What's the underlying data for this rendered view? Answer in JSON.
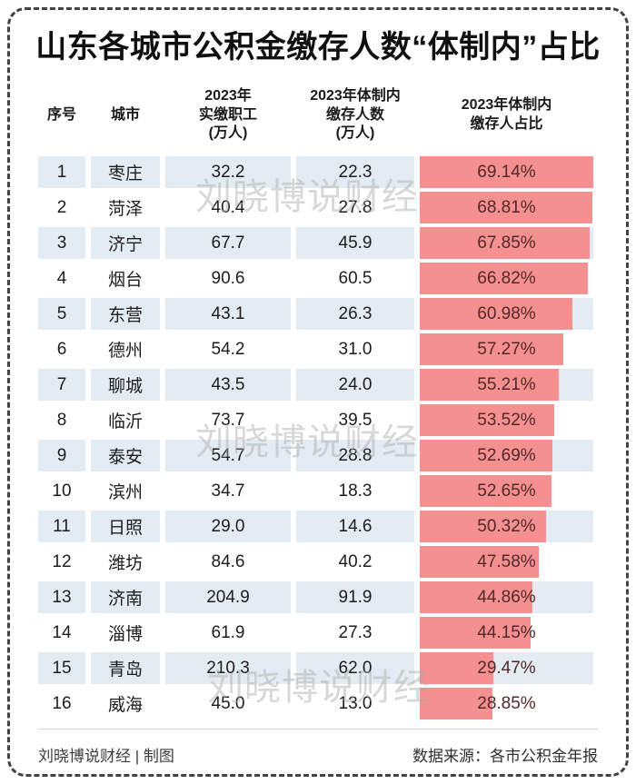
{
  "title": "山东各城市公积金缴存人数“体制内”占比",
  "watermark_text": "刘晓博说财经",
  "colors": {
    "bar": "#f49090",
    "row_band": "#e4ecf3",
    "percent_text": "#532828"
  },
  "table": {
    "headers": [
      "序号",
      "城市",
      "2023年\n实缴职工\n(万人)",
      "2023年体制内\n缴存人数\n(万人)",
      "2023年体制内\n缴存人占比"
    ],
    "bar_scale_max_percent": 69.14,
    "rows": [
      {
        "rank": "1",
        "city": "枣庄",
        "employees": "32.2",
        "institutional": "22.3",
        "percent": "69.14%",
        "percent_value": 69.14
      },
      {
        "rank": "2",
        "city": "菏泽",
        "employees": "40.4",
        "institutional": "27.8",
        "percent": "68.81%",
        "percent_value": 68.81
      },
      {
        "rank": "3",
        "city": "济宁",
        "employees": "67.7",
        "institutional": "45.9",
        "percent": "67.85%",
        "percent_value": 67.85
      },
      {
        "rank": "4",
        "city": "烟台",
        "employees": "90.6",
        "institutional": "60.5",
        "percent": "66.82%",
        "percent_value": 66.82
      },
      {
        "rank": "5",
        "city": "东营",
        "employees": "43.1",
        "institutional": "26.3",
        "percent": "60.98%",
        "percent_value": 60.98
      },
      {
        "rank": "6",
        "city": "德州",
        "employees": "54.2",
        "institutional": "31.0",
        "percent": "57.27%",
        "percent_value": 57.27
      },
      {
        "rank": "7",
        "city": "聊城",
        "employees": "43.5",
        "institutional": "24.0",
        "percent": "55.21%",
        "percent_value": 55.21
      },
      {
        "rank": "8",
        "city": "临沂",
        "employees": "73.7",
        "institutional": "39.5",
        "percent": "53.52%",
        "percent_value": 53.52
      },
      {
        "rank": "9",
        "city": "泰安",
        "employees": "54.7",
        "institutional": "28.8",
        "percent": "52.69%",
        "percent_value": 52.69
      },
      {
        "rank": "10",
        "city": "滨州",
        "employees": "34.7",
        "institutional": "18.3",
        "percent": "52.65%",
        "percent_value": 52.65
      },
      {
        "rank": "11",
        "city": "日照",
        "employees": "29.0",
        "institutional": "14.6",
        "percent": "50.32%",
        "percent_value": 50.32
      },
      {
        "rank": "12",
        "city": "潍坊",
        "employees": "84.6",
        "institutional": "40.2",
        "percent": "47.58%",
        "percent_value": 47.58
      },
      {
        "rank": "13",
        "city": "济南",
        "employees": "204.9",
        "institutional": "91.9",
        "percent": "44.86%",
        "percent_value": 44.86
      },
      {
        "rank": "14",
        "city": "淄博",
        "employees": "61.9",
        "institutional": "27.3",
        "percent": "44.15%",
        "percent_value": 44.15
      },
      {
        "rank": "15",
        "city": "青岛",
        "employees": "210.3",
        "institutional": "62.0",
        "percent": "29.47%",
        "percent_value": 29.47
      },
      {
        "rank": "16",
        "city": "威海",
        "employees": "45.0",
        "institutional": "13.0",
        "percent": "28.85%",
        "percent_value": 28.85
      }
    ]
  },
  "footer": {
    "left": "刘晓博说财经 | 制图",
    "right": "数据来源：各市公积金年报"
  },
  "chart_data": {
    "type": "table",
    "title": "山东各城市公积金缴存人数“体制内”占比",
    "columns": [
      "序号",
      "城市",
      "2023年实缴职工(万人)",
      "2023年体制内缴存人数(万人)",
      "2023年体制内缴存人占比"
    ],
    "rows": [
      [
        1,
        "枣庄",
        32.2,
        22.3,
        69.14
      ],
      [
        2,
        "菏泽",
        40.4,
        27.8,
        68.81
      ],
      [
        3,
        "济宁",
        67.7,
        45.9,
        67.85
      ],
      [
        4,
        "烟台",
        90.6,
        60.5,
        66.82
      ],
      [
        5,
        "东营",
        43.1,
        26.3,
        60.98
      ],
      [
        6,
        "德州",
        54.2,
        31.0,
        57.27
      ],
      [
        7,
        "聊城",
        43.5,
        24.0,
        55.21
      ],
      [
        8,
        "临沂",
        73.7,
        39.5,
        53.52
      ],
      [
        9,
        "泰安",
        54.7,
        28.8,
        52.69
      ],
      [
        10,
        "滨州",
        34.7,
        18.3,
        52.65
      ],
      [
        11,
        "日照",
        29.0,
        14.6,
        50.32
      ],
      [
        12,
        "潍坊",
        84.6,
        40.2,
        47.58
      ],
      [
        13,
        "济南",
        204.9,
        91.9,
        44.86
      ],
      [
        14,
        "淄博",
        61.9,
        27.3,
        44.15
      ],
      [
        15,
        "青岛",
        210.3,
        62.0,
        29.47
      ],
      [
        16,
        "威海",
        45.0,
        13.0,
        28.85
      ]
    ],
    "percent_bar": {
      "unit": "%",
      "bar_full_width_at": 69.14,
      "bar_color": "#f49090"
    },
    "source_note": "数据来源：各市公积金年报"
  }
}
